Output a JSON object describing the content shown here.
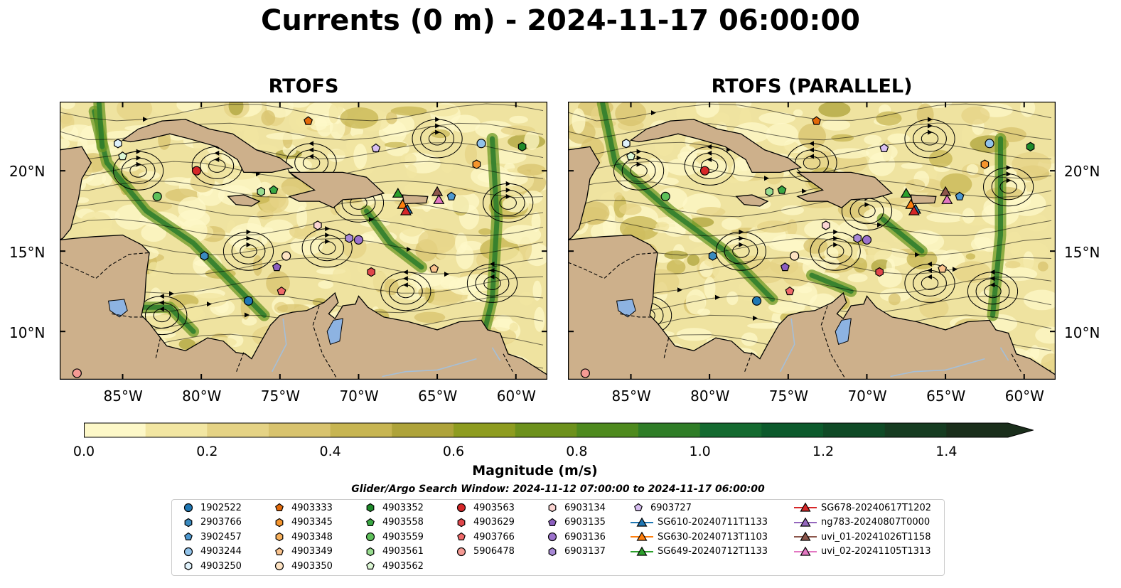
{
  "title": "Currents (0 m) - 2024-11-17 06:00:00",
  "panels": [
    {
      "title": "RTOFS"
    },
    {
      "title": "RTOFS (PARALLEL)"
    }
  ],
  "map_extent": {
    "lon": [
      -89,
      -58
    ],
    "lat": [
      7,
      24.3
    ]
  },
  "lon_ticks": [
    "85°W",
    "80°W",
    "75°W",
    "70°W",
    "65°W",
    "60°W"
  ],
  "lat_ticks": [
    "10°N",
    "15°N",
    "20°N"
  ],
  "colorbar": {
    "label": "Magnitude (m/s)",
    "range": [
      0,
      1.5
    ],
    "ticks": [
      "0.0",
      "0.2",
      "0.4",
      "0.6",
      "0.8",
      "1.0",
      "1.2",
      "1.4"
    ],
    "colors": [
      "#fdf8c8",
      "#f2e6a2",
      "#e5d385",
      "#d8c36e",
      "#c7b552",
      "#aea33a",
      "#8e9c20",
      "#6d911c",
      "#4e8a1e",
      "#2f7d27",
      "#146a30",
      "#0c5a2c",
      "#0f4a26",
      "#163c21",
      "#1a2e1b"
    ],
    "extend": "max"
  },
  "search_window": "Glider/Argo Search Window: 2024-11-12 07:00:00 to 2024-11-17 06:00:00",
  "legend": [
    {
      "label": "1902522",
      "shape": "circle",
      "color": "#1f77b4"
    },
    {
      "label": "2903766",
      "shape": "hexagon",
      "color": "#3a8abf"
    },
    {
      "label": "3902457",
      "shape": "pentagon",
      "color": "#4d98d0"
    },
    {
      "label": "4903244",
      "shape": "circle",
      "color": "#92c3ea"
    },
    {
      "label": "4903250",
      "shape": "hexagon",
      "color": "#dff1fb"
    },
    {
      "label": "4903333",
      "shape": "pentagon",
      "color": "#e2690a"
    },
    {
      "label": "4903345",
      "shape": "hexagon",
      "color": "#f5952d"
    },
    {
      "label": "4903348",
      "shape": "hexagon",
      "color": "#f7b05b"
    },
    {
      "label": "4903349",
      "shape": "pentagon",
      "color": "#fac38d"
    },
    {
      "label": "4903350",
      "shape": "circle",
      "color": "#fde2c2"
    },
    {
      "label": "4903352",
      "shape": "hexagon",
      "color": "#1e8a2a"
    },
    {
      "label": "4903558",
      "shape": "pentagon",
      "color": "#3aa843"
    },
    {
      "label": "4903559",
      "shape": "circle",
      "color": "#5ec05a"
    },
    {
      "label": "4903561",
      "shape": "hexagon",
      "color": "#98dc8f"
    },
    {
      "label": "4903562",
      "shape": "pentagon",
      "color": "#dcf7d4"
    },
    {
      "label": "4903563",
      "shape": "circle",
      "color": "#d62728"
    },
    {
      "label": "4903629",
      "shape": "hexagon",
      "color": "#e0474b"
    },
    {
      "label": "4903766",
      "shape": "pentagon",
      "color": "#ef6a6a"
    },
    {
      "label": "5906478",
      "shape": "circle",
      "color": "#f59a94"
    },
    {
      "label": "6903134",
      "shape": "hexagon",
      "color": "#fbd5d2"
    },
    {
      "label": "6903135",
      "shape": "pentagon",
      "color": "#8c5fbf"
    },
    {
      "label": "6903136",
      "shape": "circle",
      "color": "#9c72cc"
    },
    {
      "label": "6903137",
      "shape": "hexagon",
      "color": "#a889d6"
    },
    {
      "label": "6903727",
      "shape": "pentagon",
      "color": "#d8bff2"
    },
    {
      "label": "SG610-20240711T1133",
      "shape": "triangle-line",
      "color": "#1f77b4"
    },
    {
      "label": "SG630-20240713T1103",
      "shape": "triangle-line",
      "color": "#ff7f0e"
    },
    {
      "label": "SG649-20240712T1133",
      "shape": "triangle-line",
      "color": "#2ca02c"
    },
    {
      "label": "SG678-20240617T1202",
      "shape": "triangle-line",
      "color": "#d62728"
    },
    {
      "label": "ng783-20240807T0000",
      "shape": "triangle-line",
      "color": "#9467bd"
    },
    {
      "label": "uvi_01-20241026T1158",
      "shape": "triangle-line",
      "color": "#8c564b"
    },
    {
      "label": "uvi_02-20241105T1313",
      "shape": "triangle-line",
      "color": "#e377c2"
    }
  ],
  "markers": [
    {
      "id": "4903250",
      "lon": -85.3,
      "lat": 21.7
    },
    {
      "id": "4903562",
      "lon": -85.0,
      "lat": 20.9
    },
    {
      "id": "4903563",
      "lon": -80.3,
      "lat": 20.0
    },
    {
      "id": "4903559",
      "lon": -82.8,
      "lat": 18.4
    },
    {
      "id": "4903561",
      "lon": -76.2,
      "lat": 18.7
    },
    {
      "id": "4903558",
      "lon": -75.4,
      "lat": 18.8
    },
    {
      "id": "4903333",
      "lon": -73.2,
      "lat": 23.1
    },
    {
      "id": "6903727",
      "lon": -68.9,
      "lat": 21.4
    },
    {
      "id": "4903244",
      "lon": -62.2,
      "lat": 21.7
    },
    {
      "id": "4903352",
      "lon": -59.6,
      "lat": 21.5
    },
    {
      "id": "4903345",
      "lon": -62.5,
      "lat": 20.4
    },
    {
      "id": "3902457",
      "lon": -64.1,
      "lat": 18.4
    },
    {
      "id": "6903134",
      "lon": -72.6,
      "lat": 16.6
    },
    {
      "id": "6903137",
      "lon": -70.6,
      "lat": 15.8
    },
    {
      "id": "6903136",
      "lon": -70.0,
      "lat": 15.7
    },
    {
      "id": "2903766",
      "lon": -79.8,
      "lat": 14.7
    },
    {
      "id": "4903350",
      "lon": -74.6,
      "lat": 14.7
    },
    {
      "id": "6903135",
      "lon": -75.2,
      "lat": 14.0
    },
    {
      "id": "4903629",
      "lon": -69.2,
      "lat": 13.7
    },
    {
      "id": "4903349",
      "lon": -65.2,
      "lat": 13.9
    },
    {
      "id": "4903766",
      "lon": -74.9,
      "lat": 12.5
    },
    {
      "id": "1902522",
      "lon": -77.0,
      "lat": 11.9
    },
    {
      "id": "5906478",
      "lon": -87.9,
      "lat": 7.4
    },
    {
      "id": "SG649-20240712T1133",
      "lon": -67.5,
      "lat": 18.6
    },
    {
      "id": "SG630-20240713T1103",
      "lon": -67.2,
      "lat": 17.9
    },
    {
      "id": "SG610-20240711T1133",
      "lon": -66.9,
      "lat": 17.6
    },
    {
      "id": "SG678-20240617T1202",
      "lon": -67.0,
      "lat": 17.5
    },
    {
      "id": "uvi_01-20241026T1158",
      "lon": -65.0,
      "lat": 18.7
    },
    {
      "id": "uvi_02-20241105T1313",
      "lon": -64.9,
      "lat": 18.2
    }
  ]
}
